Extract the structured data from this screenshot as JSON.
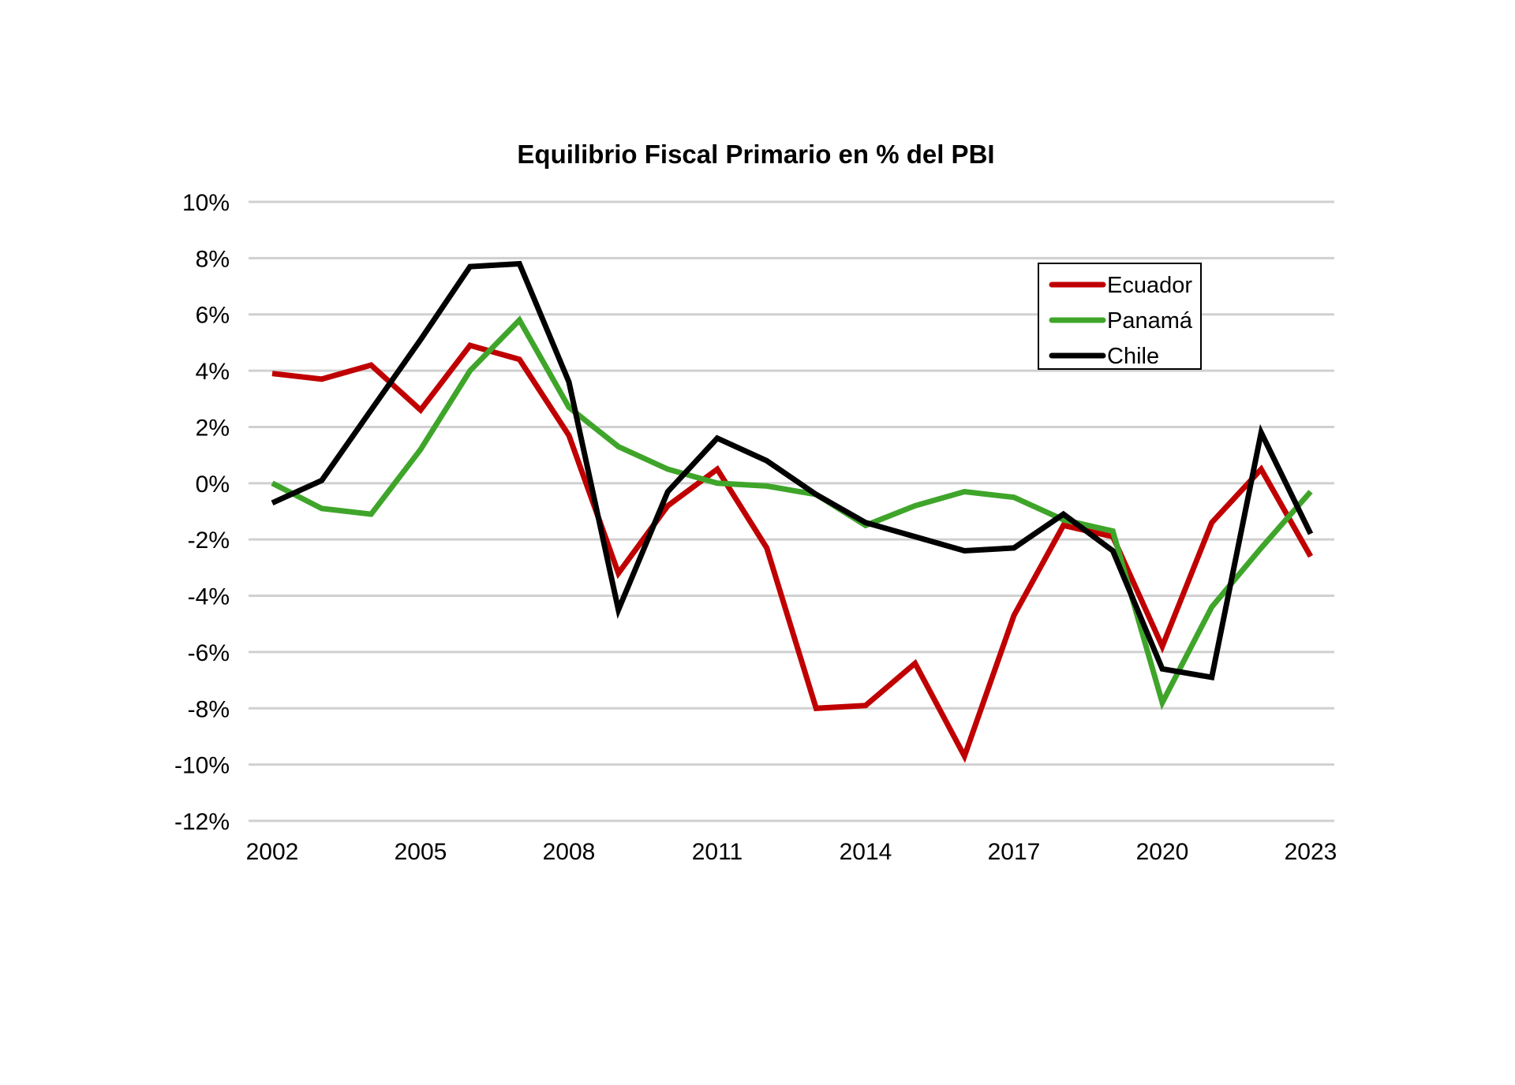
{
  "chart_data": {
    "type": "line",
    "title": "Equilibrio Fiscal Primario en % del PBI",
    "xlabel": "",
    "ylabel": "",
    "x": [
      2002,
      2003,
      2004,
      2005,
      2006,
      2007,
      2008,
      2009,
      2010,
      2011,
      2012,
      2013,
      2014,
      2015,
      2016,
      2017,
      2018,
      2019,
      2020,
      2021,
      2022,
      2023
    ],
    "x_tick_labels": [
      "2002",
      "2005",
      "2008",
      "2011",
      "2014",
      "2017",
      "2020",
      "2023"
    ],
    "x_ticks": [
      2002,
      2005,
      2008,
      2011,
      2014,
      2017,
      2020,
      2023
    ],
    "ylim": [
      -12,
      10
    ],
    "y_ticks": [
      10,
      8,
      6,
      4,
      2,
      0,
      -2,
      -4,
      -6,
      -8,
      -10,
      -12
    ],
    "y_tick_labels": [
      "10%",
      "8%",
      "6%",
      "4%",
      "2%",
      "0%",
      "-2%",
      "-4%",
      "-6%",
      "-8%",
      "-10%",
      "-12%"
    ],
    "grid": true,
    "legend_position": "top-right",
    "series": [
      {
        "name": "Ecuador",
        "color": "#c00000",
        "values": [
          3.9,
          3.7,
          4.2,
          2.6,
          4.9,
          4.4,
          1.7,
          -3.2,
          -0.8,
          0.5,
          -2.3,
          -8.0,
          -7.9,
          -6.4,
          -9.7,
          -4.7,
          -1.5,
          -1.9,
          -5.8,
          -1.4,
          0.5,
          -2.6
        ]
      },
      {
        "name": "Panamá",
        "color": "#3fa52a",
        "values": [
          0.0,
          -0.9,
          -1.1,
          1.2,
          4.0,
          5.8,
          2.7,
          1.3,
          0.5,
          0.0,
          -0.1,
          -0.4,
          -1.5,
          -0.8,
          -0.3,
          -0.5,
          -1.3,
          -1.7,
          -7.8,
          -4.4,
          -2.3,
          -0.3
        ]
      },
      {
        "name": "Chile",
        "color": "#000000",
        "values": [
          -0.7,
          0.1,
          2.6,
          5.1,
          7.7,
          7.8,
          3.6,
          -4.5,
          -0.3,
          1.6,
          0.8,
          -0.4,
          -1.4,
          -1.9,
          -2.4,
          -2.3,
          -1.1,
          -2.4,
          -6.6,
          -6.9,
          1.8,
          -1.8
        ]
      }
    ]
  }
}
